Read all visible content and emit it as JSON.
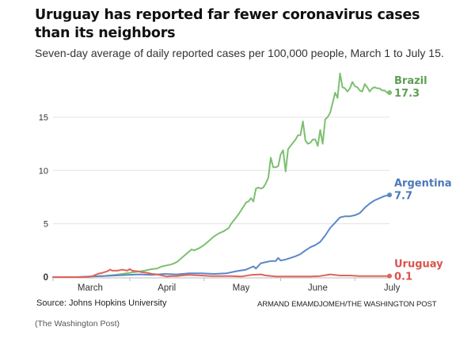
{
  "header": {
    "title": "Uruguay has reported far fewer coronavirus cases than its neighbors",
    "subtitle": "Seven-day average of daily reported cases per 100,000 people, March 1 to July 15."
  },
  "footer": {
    "source": "Source: Johns Hopkins University",
    "credit": "ARMAND EMAMDJOMEH/THE WASHINGTON POST",
    "caption": "(The Washington Post)"
  },
  "chart_data": {
    "type": "line",
    "title": "Uruguay has reported far fewer coronavirus cases than its neighbors",
    "subtitle": "Seven-day average of daily reported cases per 100,000 people, March 1 to July 15.",
    "xlabel": "",
    "ylabel": "",
    "x_unit": "days since March 1",
    "xlim": [
      0,
      136
    ],
    "ylim": [
      0,
      19.5
    ],
    "y_ticks": [
      0,
      5,
      10,
      15
    ],
    "x_ticks": [
      {
        "label": "March",
        "day": 15
      },
      {
        "label": "April",
        "day": 46
      },
      {
        "label": "May",
        "day": 76
      },
      {
        "label": "June",
        "day": 107
      },
      {
        "label": "July",
        "day": 137
      }
    ],
    "x_tick_marks": [
      31,
      61,
      92,
      122
    ],
    "grid": true,
    "legend": "direct labels at right end of each line",
    "series": [
      {
        "name": "Brazil",
        "color": "#7dbf71",
        "label_color": "#5e9e54",
        "last_value": "17.3",
        "points": [
          [
            0,
            0
          ],
          [
            10,
            0
          ],
          [
            15,
            0.05
          ],
          [
            20,
            0.1
          ],
          [
            25,
            0.2
          ],
          [
            28,
            0.3
          ],
          [
            31,
            0.4
          ],
          [
            34,
            0.5
          ],
          [
            37,
            0.6
          ],
          [
            40,
            0.75
          ],
          [
            42,
            0.8
          ],
          [
            44,
            1.0
          ],
          [
            46,
            1.1
          ],
          [
            48,
            1.2
          ],
          [
            50,
            1.4
          ],
          [
            52,
            1.8
          ],
          [
            54,
            2.2
          ],
          [
            56,
            2.6
          ],
          [
            57,
            2.5
          ],
          [
            59,
            2.7
          ],
          [
            61,
            3.0
          ],
          [
            63,
            3.4
          ],
          [
            65,
            3.8
          ],
          [
            67,
            4.1
          ],
          [
            69,
            4.3
          ],
          [
            71,
            4.6
          ],
          [
            72,
            5.0
          ],
          [
            74,
            5.6
          ],
          [
            75,
            5.9
          ],
          [
            77,
            6.6
          ],
          [
            78,
            7.0
          ],
          [
            79,
            7.1
          ],
          [
            80,
            7.4
          ],
          [
            81,
            7.1
          ],
          [
            82,
            8.3
          ],
          [
            83,
            8.4
          ],
          [
            84,
            8.3
          ],
          [
            85,
            8.4
          ],
          [
            86,
            8.8
          ],
          [
            87,
            9.3
          ],
          [
            88,
            11.2
          ],
          [
            89,
            10.3
          ],
          [
            90,
            10.3
          ],
          [
            91,
            10.4
          ],
          [
            92,
            11.5
          ],
          [
            93,
            11.9
          ],
          [
            94,
            9.9
          ],
          [
            95,
            12.0
          ],
          [
            96,
            12.3
          ],
          [
            97,
            12.6
          ],
          [
            98,
            12.9
          ],
          [
            99,
            13.3
          ],
          [
            100,
            13.3
          ],
          [
            101,
            14.6
          ],
          [
            102,
            12.8
          ],
          [
            103,
            12.5
          ],
          [
            104,
            12.6
          ],
          [
            105,
            12.9
          ],
          [
            106,
            12.9
          ],
          [
            107,
            12.3
          ],
          [
            108,
            13.8
          ],
          [
            109,
            12.5
          ],
          [
            110,
            14.8
          ],
          [
            111,
            15.0
          ],
          [
            112,
            15.4
          ],
          [
            113,
            16.3
          ],
          [
            114,
            17.3
          ],
          [
            115,
            16.8
          ],
          [
            116,
            19.1
          ],
          [
            117,
            17.8
          ],
          [
            118,
            17.7
          ],
          [
            119,
            17.4
          ],
          [
            120,
            17.7
          ],
          [
            121,
            18.3
          ],
          [
            122,
            17.9
          ],
          [
            123,
            17.8
          ],
          [
            124,
            17.5
          ],
          [
            125,
            17.4
          ],
          [
            126,
            18.1
          ],
          [
            127,
            17.8
          ],
          [
            128,
            17.4
          ],
          [
            129,
            17.7
          ],
          [
            130,
            17.8
          ],
          [
            131,
            17.7
          ],
          [
            132,
            17.7
          ],
          [
            133,
            17.5
          ],
          [
            134,
            17.5
          ],
          [
            135,
            17.3
          ],
          [
            136,
            17.3
          ]
        ]
      },
      {
        "name": "Argentina",
        "color": "#5b87c7",
        "label_color": "#4a78b8",
        "last_value": "7.7",
        "points": [
          [
            0,
            0
          ],
          [
            10,
            0
          ],
          [
            15,
            0.05
          ],
          [
            20,
            0.1
          ],
          [
            25,
            0.15
          ],
          [
            30,
            0.2
          ],
          [
            35,
            0.25
          ],
          [
            40,
            0.2
          ],
          [
            45,
            0.3
          ],
          [
            50,
            0.25
          ],
          [
            55,
            0.35
          ],
          [
            60,
            0.35
          ],
          [
            65,
            0.3
          ],
          [
            70,
            0.35
          ],
          [
            74,
            0.55
          ],
          [
            78,
            0.7
          ],
          [
            81,
            1.0
          ],
          [
            82,
            0.8
          ],
          [
            84,
            1.3
          ],
          [
            86,
            1.4
          ],
          [
            88,
            1.5
          ],
          [
            90,
            1.5
          ],
          [
            91,
            1.8
          ],
          [
            92,
            1.55
          ],
          [
            94,
            1.65
          ],
          [
            96,
            1.8
          ],
          [
            98,
            1.95
          ],
          [
            100,
            2.15
          ],
          [
            102,
            2.5
          ],
          [
            104,
            2.8
          ],
          [
            106,
            3.0
          ],
          [
            108,
            3.3
          ],
          [
            110,
            3.9
          ],
          [
            112,
            4.6
          ],
          [
            114,
            5.1
          ],
          [
            116,
            5.6
          ],
          [
            118,
            5.7
          ],
          [
            120,
            5.7
          ],
          [
            122,
            5.8
          ],
          [
            124,
            6.0
          ],
          [
            126,
            6.5
          ],
          [
            128,
            6.9
          ],
          [
            130,
            7.2
          ],
          [
            132,
            7.4
          ],
          [
            134,
            7.6
          ],
          [
            136,
            7.7
          ]
        ]
      },
      {
        "name": "Uruguay",
        "color": "#e0635a",
        "label_color": "#d9544c",
        "last_value": "0.1",
        "points": [
          [
            0,
            0
          ],
          [
            14,
            0
          ],
          [
            16,
            0.1
          ],
          [
            18,
            0.3
          ],
          [
            20,
            0.4
          ],
          [
            22,
            0.55
          ],
          [
            23,
            0.7
          ],
          [
            24,
            0.6
          ],
          [
            26,
            0.6
          ],
          [
            28,
            0.7
          ],
          [
            30,
            0.6
          ],
          [
            31,
            0.75
          ],
          [
            32,
            0.6
          ],
          [
            34,
            0.55
          ],
          [
            36,
            0.45
          ],
          [
            38,
            0.4
          ],
          [
            40,
            0.3
          ],
          [
            42,
            0.25
          ],
          [
            44,
            0.15
          ],
          [
            46,
            0.05
          ],
          [
            48,
            0.1
          ],
          [
            50,
            0.1
          ],
          [
            52,
            0.15
          ],
          [
            55,
            0.2
          ],
          [
            60,
            0.15
          ],
          [
            64,
            0.1
          ],
          [
            68,
            0.1
          ],
          [
            72,
            0.1
          ],
          [
            76,
            0.05
          ],
          [
            80,
            0.2
          ],
          [
            84,
            0.25
          ],
          [
            86,
            0.15
          ],
          [
            90,
            0.05
          ],
          [
            94,
            0.05
          ],
          [
            100,
            0.05
          ],
          [
            104,
            0.05
          ],
          [
            108,
            0.1
          ],
          [
            112,
            0.25
          ],
          [
            116,
            0.15
          ],
          [
            120,
            0.15
          ],
          [
            124,
            0.1
          ],
          [
            130,
            0.1
          ],
          [
            136,
            0.1
          ]
        ]
      }
    ]
  }
}
